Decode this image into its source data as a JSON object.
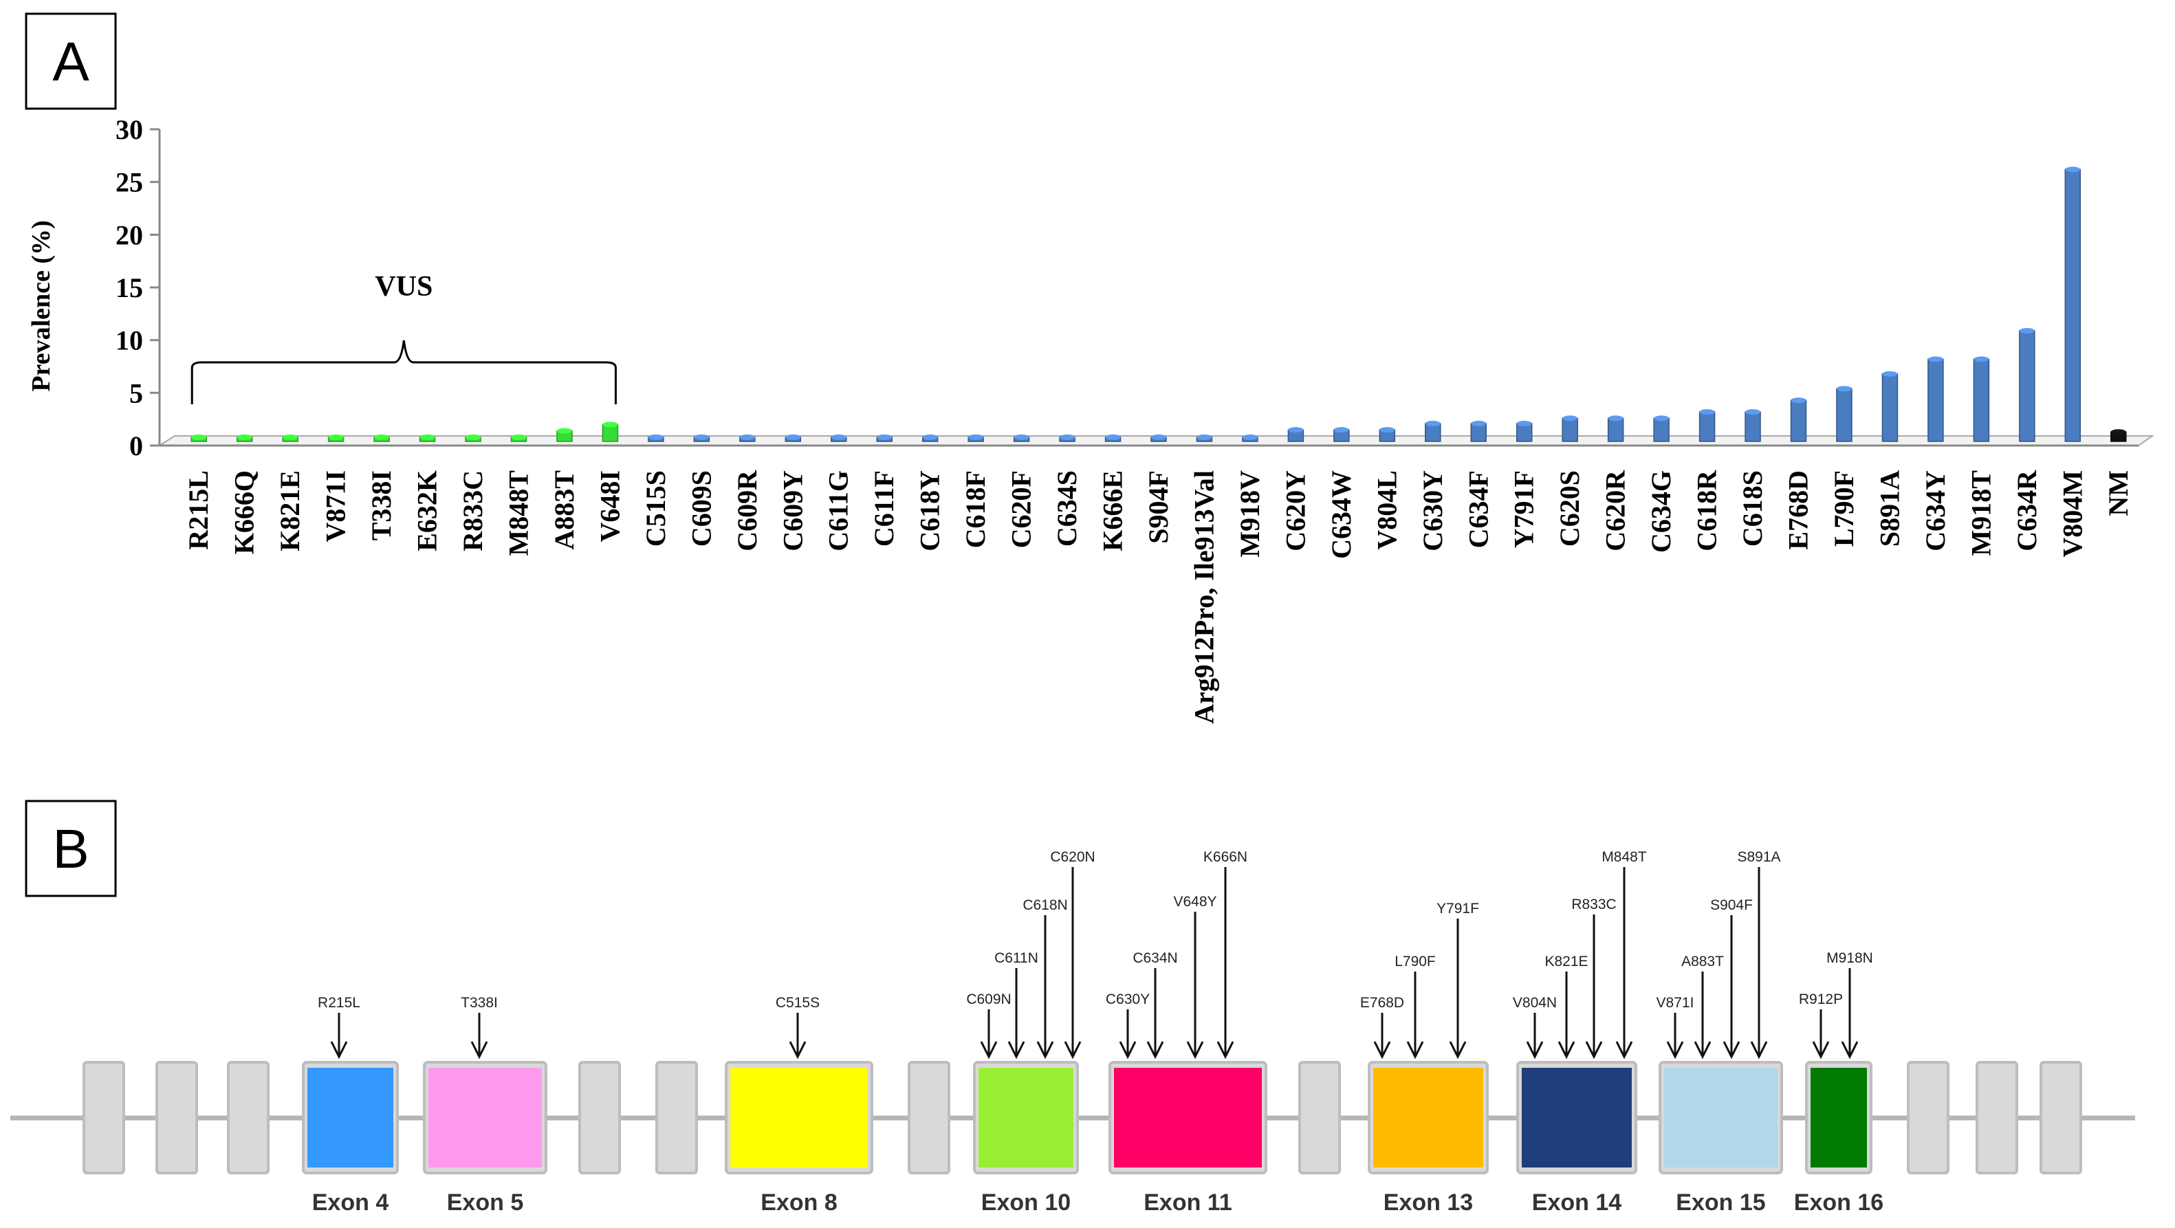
{
  "panels": {
    "a_label": "A",
    "b_label": "B"
  },
  "chart_data": {
    "type": "bar",
    "title": "",
    "xlabel": "",
    "ylabel": "Prevalence (%)",
    "ylim": [
      0,
      30
    ],
    "yticks": [
      0,
      5,
      10,
      15,
      20,
      25,
      30
    ],
    "annotation": "VUS",
    "categories": [
      "R215L",
      "K666Q",
      "K821E",
      "V871I",
      "T338I",
      "E632K",
      "R833C",
      "M848T",
      "A883T",
      "V648I",
      "C515S",
      "C609S",
      "C609R",
      "C609Y",
      "C611G",
      "C611F",
      "C618Y",
      "C618F",
      "C620F",
      "C634S",
      "K666E",
      "S904F",
      "Arg912Pro, Ile913Val",
      "M918V",
      "C620Y",
      "C634W",
      "V804L",
      "C630Y",
      "C634F",
      "Y791F",
      "C620S",
      "C620R",
      "C634G",
      "C618R",
      "C618S",
      "E768D",
      "L790F",
      "S891A",
      "C634Y",
      "M918T",
      "C634R",
      "V804M",
      "NM"
    ],
    "values": [
      0.4,
      0.4,
      0.4,
      0.4,
      0.4,
      0.4,
      0.4,
      0.4,
      1.0,
      1.6,
      0.4,
      0.4,
      0.4,
      0.4,
      0.4,
      0.4,
      0.4,
      0.4,
      0.4,
      0.4,
      0.4,
      0.4,
      0.4,
      0.4,
      1.1,
      1.1,
      1.1,
      1.7,
      1.7,
      1.7,
      2.2,
      2.2,
      2.2,
      2.8,
      2.8,
      3.9,
      5.0,
      6.4,
      7.8,
      7.8,
      10.5,
      25.8,
      0.9
    ],
    "groups": [
      "vus",
      "vus",
      "vus",
      "vus",
      "vus",
      "vus",
      "vus",
      "vus",
      "vus",
      "vus",
      "pathogenic",
      "pathogenic",
      "pathogenic",
      "pathogenic",
      "pathogenic",
      "pathogenic",
      "pathogenic",
      "pathogenic",
      "pathogenic",
      "pathogenic",
      "pathogenic",
      "pathogenic",
      "pathogenic",
      "pathogenic",
      "pathogenic",
      "pathogenic",
      "pathogenic",
      "pathogenic",
      "pathogenic",
      "pathogenic",
      "pathogenic",
      "pathogenic",
      "pathogenic",
      "pathogenic",
      "pathogenic",
      "pathogenic",
      "pathogenic",
      "pathogenic",
      "pathogenic",
      "pathogenic",
      "pathogenic",
      "pathogenic",
      "nm"
    ],
    "colors": {
      "vus": "#33dd33",
      "pathogenic": "#4a7cc0",
      "nm": "#111111"
    }
  },
  "exon_map": {
    "exons": [
      {
        "name": "Exon 4",
        "color": "#3399ff",
        "mutations": [
          "R215L"
        ]
      },
      {
        "name": "Exon 5",
        "color": "#ff99ee",
        "mutations": [
          "T338I"
        ]
      },
      {
        "name": "Exon 8",
        "color": "#ffff00",
        "mutations": [
          "C515S"
        ]
      },
      {
        "name": "Exon 10",
        "color": "#99ee33",
        "mutations": [
          "C609N",
          "C611N",
          "C618N",
          "C620N"
        ]
      },
      {
        "name": "Exon 11",
        "color": "#ff0066",
        "mutations": [
          "C630Y",
          "C634N",
          "V648Y",
          "K666N"
        ]
      },
      {
        "name": "Exon 13",
        "color": "#ffbb00",
        "mutations": [
          "E768D",
          "L790F",
          "Y791F"
        ]
      },
      {
        "name": "Exon 14",
        "color": "#1f3f7a",
        "mutations": [
          "V804N",
          "K821E",
          "R833C",
          "M848T"
        ]
      },
      {
        "name": "Exon 15",
        "color": "#b0d8e8",
        "mutations": [
          "V871I",
          "A883T",
          "S904F",
          "S891A"
        ]
      },
      {
        "name": "Exon 16",
        "color": "#007a00",
        "mutations": [
          "R912P",
          "M918N"
        ]
      }
    ]
  }
}
